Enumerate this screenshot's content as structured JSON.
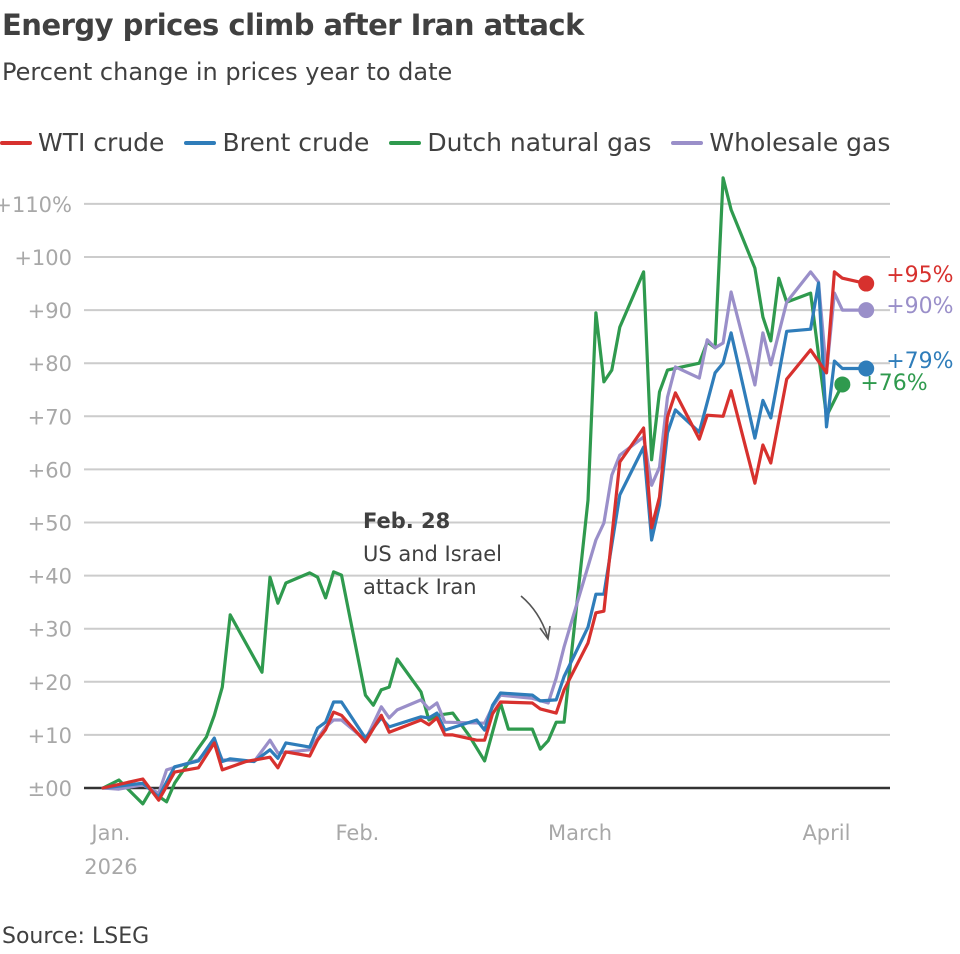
{
  "header": {
    "title": "Energy prices climb after Iran attack",
    "subtitle": "Percent change in prices year to date"
  },
  "footer": {
    "source": "Source: LSEG"
  },
  "chart_data": {
    "type": "line",
    "title": "Energy prices climb after Iran attack",
    "subtitle": "Percent change in prices year to date",
    "xlabel": "",
    "ylabel": "",
    "xlim": [
      "2025-12-31",
      "2026-04-10"
    ],
    "ylim": [
      -3,
      112
    ],
    "grid": true,
    "legend_position": "top",
    "y_ticks": [
      {
        "value": 0,
        "label": "±00"
      },
      {
        "value": 10,
        "label": "+10"
      },
      {
        "value": 20,
        "label": "+20"
      },
      {
        "value": 30,
        "label": "+30"
      },
      {
        "value": 40,
        "label": "+40"
      },
      {
        "value": 50,
        "label": "+50"
      },
      {
        "value": 60,
        "label": "+60"
      },
      {
        "value": 70,
        "label": "+70"
      },
      {
        "value": 80,
        "label": "+80"
      },
      {
        "value": 90,
        "label": "+90"
      },
      {
        "value": 100,
        "label": "+100"
      },
      {
        "value": 110,
        "label": "+110%"
      }
    ],
    "x_ticks": [
      {
        "date": "2026-01-01",
        "label": "Jan.",
        "sublabel": "2026"
      },
      {
        "date": "2026-02-01",
        "label": "Feb."
      },
      {
        "date": "2026-03-01",
        "label": "March"
      },
      {
        "date": "2026-04-01",
        "label": "April"
      }
    ],
    "annotation": {
      "date": "2026-02-28",
      "heading": "Feb. 28",
      "lines": [
        "US and Israel",
        "attack Iran"
      ]
    },
    "series": [
      {
        "name": "WTI crude",
        "color": "#d7312e",
        "end_label": "+95%",
        "points": [
          [
            "2025-12-31",
            0
          ],
          [
            "2026-01-05",
            1.7
          ],
          [
            "2026-01-07",
            -2.3
          ],
          [
            "2026-01-09",
            3
          ],
          [
            "2026-01-12",
            3.8
          ],
          [
            "2026-01-14",
            8.5
          ],
          [
            "2026-01-15",
            3.4
          ],
          [
            "2026-01-18",
            5
          ],
          [
            "2026-01-21",
            5.8
          ],
          [
            "2026-01-22",
            3.8
          ],
          [
            "2026-01-23",
            6.8
          ],
          [
            "2026-01-26",
            6
          ],
          [
            "2026-01-27",
            9
          ],
          [
            "2026-01-28",
            11
          ],
          [
            "2026-01-29",
            14.3
          ],
          [
            "2026-01-30",
            13.7
          ],
          [
            "2026-02-02",
            8.7
          ],
          [
            "2026-02-04",
            13.7
          ],
          [
            "2026-02-05",
            10.5
          ],
          [
            "2026-02-09",
            12.8
          ],
          [
            "2026-02-10",
            11.9
          ],
          [
            "2026-02-11",
            13.2
          ],
          [
            "2026-02-12",
            10
          ],
          [
            "2026-02-13",
            10
          ],
          [
            "2026-02-16",
            9
          ],
          [
            "2026-02-17",
            9
          ],
          [
            "2026-02-18",
            14
          ],
          [
            "2026-02-19",
            16.2
          ],
          [
            "2026-02-23",
            16
          ],
          [
            "2026-02-24",
            14.9
          ],
          [
            "2026-02-26",
            14.1
          ],
          [
            "2026-02-27",
            18.5
          ],
          [
            "2026-03-02",
            27.3
          ],
          [
            "2026-03-03",
            33
          ],
          [
            "2026-03-04",
            33.3
          ],
          [
            "2026-03-06",
            61.4
          ],
          [
            "2026-03-09",
            67.8
          ],
          [
            "2026-03-10",
            49
          ],
          [
            "2026-03-11",
            54.8
          ],
          [
            "2026-03-12",
            69.9
          ],
          [
            "2026-03-13",
            74.4
          ],
          [
            "2026-03-16",
            65.7
          ],
          [
            "2026-03-17",
            70.2
          ],
          [
            "2026-03-19",
            70
          ],
          [
            "2026-03-20",
            74.8
          ],
          [
            "2026-03-23",
            57.4
          ],
          [
            "2026-03-24",
            64.6
          ],
          [
            "2026-03-25",
            61.2
          ],
          [
            "2026-03-27",
            77
          ],
          [
            "2026-03-30",
            82.5
          ],
          [
            "2026-04-01",
            78.2
          ],
          [
            "2026-04-02",
            97.2
          ],
          [
            "2026-04-03",
            96
          ],
          [
            "2026-04-06",
            95
          ]
        ]
      },
      {
        "name": "Brent crude",
        "color": "#2f7dba",
        "end_label": "+79%",
        "points": [
          [
            "2025-12-31",
            0
          ],
          [
            "2026-01-05",
            0.9
          ],
          [
            "2026-01-07",
            -1.7
          ],
          [
            "2026-01-09",
            4
          ],
          [
            "2026-01-12",
            5.1
          ],
          [
            "2026-01-14",
            9.4
          ],
          [
            "2026-01-15",
            5
          ],
          [
            "2026-01-16",
            5.5
          ],
          [
            "2026-01-19",
            5
          ],
          [
            "2026-01-21",
            7.2
          ],
          [
            "2026-01-22",
            5.6
          ],
          [
            "2026-01-23",
            8.5
          ],
          [
            "2026-01-26",
            7.7
          ],
          [
            "2026-01-27",
            11.3
          ],
          [
            "2026-01-28",
            12.4
          ],
          [
            "2026-01-29",
            16.2
          ],
          [
            "2026-01-30",
            16.2
          ],
          [
            "2026-02-02",
            9.4
          ],
          [
            "2026-02-04",
            13.2
          ],
          [
            "2026-02-05",
            11.5
          ],
          [
            "2026-02-09",
            13.4
          ],
          [
            "2026-02-10",
            13.2
          ],
          [
            "2026-02-11",
            14.1
          ],
          [
            "2026-02-12",
            10.9
          ],
          [
            "2026-02-16",
            12.8
          ],
          [
            "2026-02-17",
            10.9
          ],
          [
            "2026-02-18",
            15.6
          ],
          [
            "2026-02-19",
            17.9
          ],
          [
            "2026-02-23",
            17.5
          ],
          [
            "2026-02-24",
            16.4
          ],
          [
            "2026-02-26",
            16.6
          ],
          [
            "2026-02-27",
            21
          ],
          [
            "2026-03-02",
            30.3
          ],
          [
            "2026-03-03",
            36.5
          ],
          [
            "2026-03-04",
            36.5
          ],
          [
            "2026-03-06",
            55.2
          ],
          [
            "2026-03-09",
            64.2
          ],
          [
            "2026-03-10",
            46.7
          ],
          [
            "2026-03-11",
            53.3
          ],
          [
            "2026-03-12",
            66.9
          ],
          [
            "2026-03-13",
            71.2
          ],
          [
            "2026-03-16",
            67
          ],
          [
            "2026-03-18",
            78.2
          ],
          [
            "2026-03-19",
            80
          ],
          [
            "2026-03-20",
            85.7
          ],
          [
            "2026-03-23",
            65.9
          ],
          [
            "2026-03-24",
            73
          ],
          [
            "2026-03-25",
            69.7
          ],
          [
            "2026-03-27",
            86
          ],
          [
            "2026-03-30",
            86.4
          ],
          [
            "2026-03-31",
            95.1
          ],
          [
            "2026-04-01",
            68
          ],
          [
            "2026-04-02",
            80.4
          ],
          [
            "2026-04-03",
            79
          ],
          [
            "2026-04-06",
            79
          ]
        ]
      },
      {
        "name": "Dutch natural gas",
        "color": "#2f9a4e",
        "end_label": "+76%",
        "points": [
          [
            "2025-12-31",
            0
          ],
          [
            "2026-01-02",
            1.5
          ],
          [
            "2026-01-05",
            -3
          ],
          [
            "2026-01-06",
            -0.5
          ],
          [
            "2026-01-08",
            -2.6
          ],
          [
            "2026-01-09",
            0.9
          ],
          [
            "2026-01-12",
            7.5
          ],
          [
            "2026-01-13",
            9.6
          ],
          [
            "2026-01-14",
            13.7
          ],
          [
            "2026-01-15",
            19
          ],
          [
            "2026-01-16",
            32.6
          ],
          [
            "2026-01-20",
            21.8
          ],
          [
            "2026-01-21",
            39.7
          ],
          [
            "2026-01-22",
            34.8
          ],
          [
            "2026-01-23",
            38.6
          ],
          [
            "2026-01-26",
            40.5
          ],
          [
            "2026-01-27",
            39.7
          ],
          [
            "2026-01-28",
            35.8
          ],
          [
            "2026-01-29",
            40.7
          ],
          [
            "2026-01-30",
            40.1
          ],
          [
            "2026-02-02",
            17.5
          ],
          [
            "2026-02-03",
            15.6
          ],
          [
            "2026-02-04",
            18.5
          ],
          [
            "2026-02-05",
            19
          ],
          [
            "2026-02-06",
            24.3
          ],
          [
            "2026-02-09",
            18.1
          ],
          [
            "2026-02-10",
            12.8
          ],
          [
            "2026-02-11",
            13.7
          ],
          [
            "2026-02-13",
            14.1
          ],
          [
            "2026-02-15",
            10
          ],
          [
            "2026-02-17",
            5.1
          ],
          [
            "2026-02-19",
            16
          ],
          [
            "2026-02-20",
            11.1
          ],
          [
            "2026-02-23",
            11.1
          ],
          [
            "2026-02-24",
            7.3
          ],
          [
            "2026-02-25",
            8.9
          ],
          [
            "2026-02-26",
            12.4
          ],
          [
            "2026-02-27",
            12.4
          ],
          [
            "2026-03-02",
            54.2
          ],
          [
            "2026-03-03",
            89.5
          ],
          [
            "2026-03-04",
            76.5
          ],
          [
            "2026-03-05",
            78.7
          ],
          [
            "2026-03-06",
            86.8
          ],
          [
            "2026-03-09",
            97.2
          ],
          [
            "2026-03-10",
            61.8
          ],
          [
            "2026-03-11",
            74.6
          ],
          [
            "2026-03-12",
            78.7
          ],
          [
            "2026-03-16",
            80
          ],
          [
            "2026-03-17",
            84
          ],
          [
            "2026-03-18",
            82.9
          ],
          [
            "2026-03-19",
            114.9
          ],
          [
            "2026-03-20",
            108.9
          ],
          [
            "2026-03-23",
            97.9
          ],
          [
            "2026-03-24",
            88.7
          ],
          [
            "2026-03-25",
            84.2
          ],
          [
            "2026-03-26",
            96
          ],
          [
            "2026-03-27",
            91.5
          ],
          [
            "2026-03-30",
            93.2
          ],
          [
            "2026-04-01",
            70
          ],
          [
            "2026-04-03",
            76
          ]
        ]
      },
      {
        "name": "Wholesale gas",
        "color": "#9a8fc9",
        "end_label": "+90%",
        "points": [
          [
            "2025-12-31",
            0
          ],
          [
            "2026-01-02",
            -0.2
          ],
          [
            "2026-01-05",
            0.6
          ],
          [
            "2026-01-07",
            -1
          ],
          [
            "2026-01-08",
            3.4
          ],
          [
            "2026-01-12",
            5.3
          ],
          [
            "2026-01-14",
            8.7
          ],
          [
            "2026-01-15",
            5.3
          ],
          [
            "2026-01-19",
            5
          ],
          [
            "2026-01-21",
            9
          ],
          [
            "2026-01-22",
            6.6
          ],
          [
            "2026-01-26",
            7.2
          ],
          [
            "2026-01-28",
            11.5
          ],
          [
            "2026-01-29",
            12.8
          ],
          [
            "2026-01-30",
            12.8
          ],
          [
            "2026-02-02",
            9
          ],
          [
            "2026-02-04",
            15.3
          ],
          [
            "2026-02-05",
            13.2
          ],
          [
            "2026-02-06",
            14.7
          ],
          [
            "2026-02-09",
            16.6
          ],
          [
            "2026-02-10",
            14.9
          ],
          [
            "2026-02-11",
            16
          ],
          [
            "2026-02-12",
            12.4
          ],
          [
            "2026-02-17",
            12.2
          ],
          [
            "2026-02-18",
            15.3
          ],
          [
            "2026-02-19",
            17.5
          ],
          [
            "2026-02-23",
            16.9
          ],
          [
            "2026-02-25",
            16
          ],
          [
            "2026-02-26",
            20.7
          ],
          [
            "2026-02-27",
            26.6
          ],
          [
            "2026-03-03",
            46.7
          ],
          [
            "2026-03-04",
            49.9
          ],
          [
            "2026-03-05",
            58.9
          ],
          [
            "2026-03-06",
            62.7
          ],
          [
            "2026-03-09",
            66.1
          ],
          [
            "2026-03-10",
            57
          ],
          [
            "2026-03-11",
            60.4
          ],
          [
            "2026-03-12",
            73.6
          ],
          [
            "2026-03-13",
            79.3
          ],
          [
            "2026-03-16",
            77.2
          ],
          [
            "2026-03-17",
            84.4
          ],
          [
            "2026-03-18",
            82.9
          ],
          [
            "2026-03-19",
            83.8
          ],
          [
            "2026-03-20",
            93.4
          ],
          [
            "2026-03-23",
            75.9
          ],
          [
            "2026-03-24",
            85.7
          ],
          [
            "2026-03-25",
            79.7
          ],
          [
            "2026-03-27",
            91.5
          ],
          [
            "2026-03-30",
            97.2
          ],
          [
            "2026-03-31",
            95.3
          ],
          [
            "2026-04-01",
            78.2
          ],
          [
            "2026-04-02",
            93.2
          ],
          [
            "2026-04-03",
            90
          ],
          [
            "2026-04-06",
            90
          ]
        ]
      }
    ]
  }
}
